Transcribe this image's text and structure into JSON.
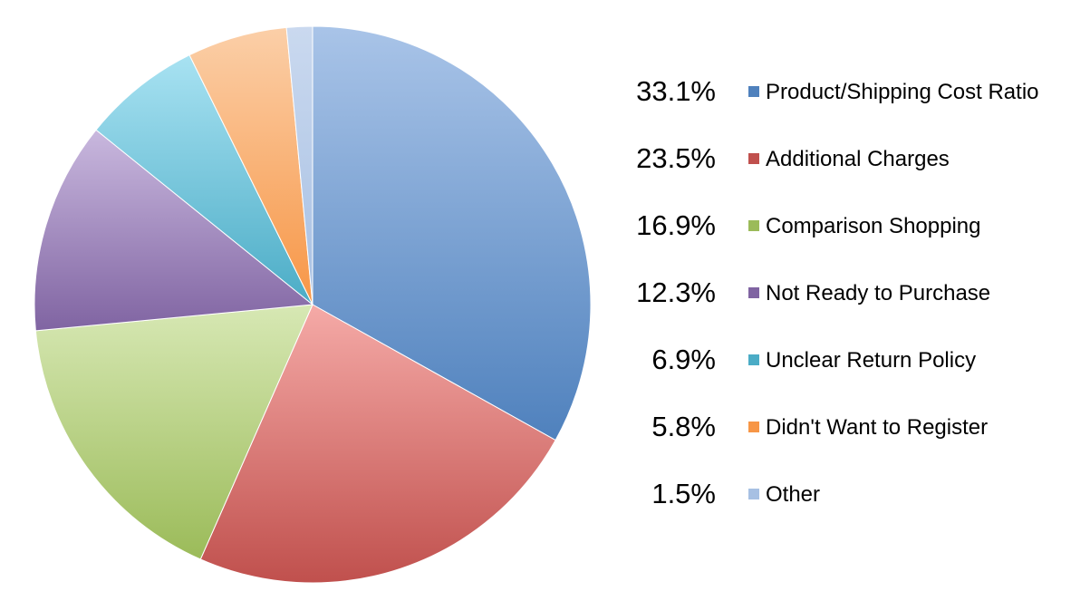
{
  "chart_data": {
    "type": "pie",
    "title": "",
    "slices": [
      {
        "label": "Product/Shipping Cost Ratio",
        "value": 33.1,
        "display": "33.1%",
        "color": "#4f81bd",
        "light": "#a9c4e8"
      },
      {
        "label": "Additional Charges",
        "value": 23.5,
        "display": "23.5%",
        "color": "#c0504d",
        "light": "#f5aaa7"
      },
      {
        "label": "Comparison Shopping",
        "value": 16.9,
        "display": "16.9%",
        "color": "#9bbb59",
        "light": "#d7e8b4"
      },
      {
        "label": "Not Ready to Purchase",
        "value": 12.3,
        "display": "12.3%",
        "color": "#8064a2",
        "light": "#c9b8de"
      },
      {
        "label": "Unclear Return Policy",
        "value": 6.9,
        "display": "6.9%",
        "color": "#4bacc6",
        "light": "#a8e2f2"
      },
      {
        "label": "Didn't Want to Register",
        "value": 5.8,
        "display": "5.8%",
        "color": "#f79646",
        "light": "#fbcfa8"
      },
      {
        "label": "Other",
        "value": 1.5,
        "display": "1.5%",
        "color": "#a7c0e3",
        "light": "#cad9ef"
      }
    ],
    "legend_position": "right"
  }
}
